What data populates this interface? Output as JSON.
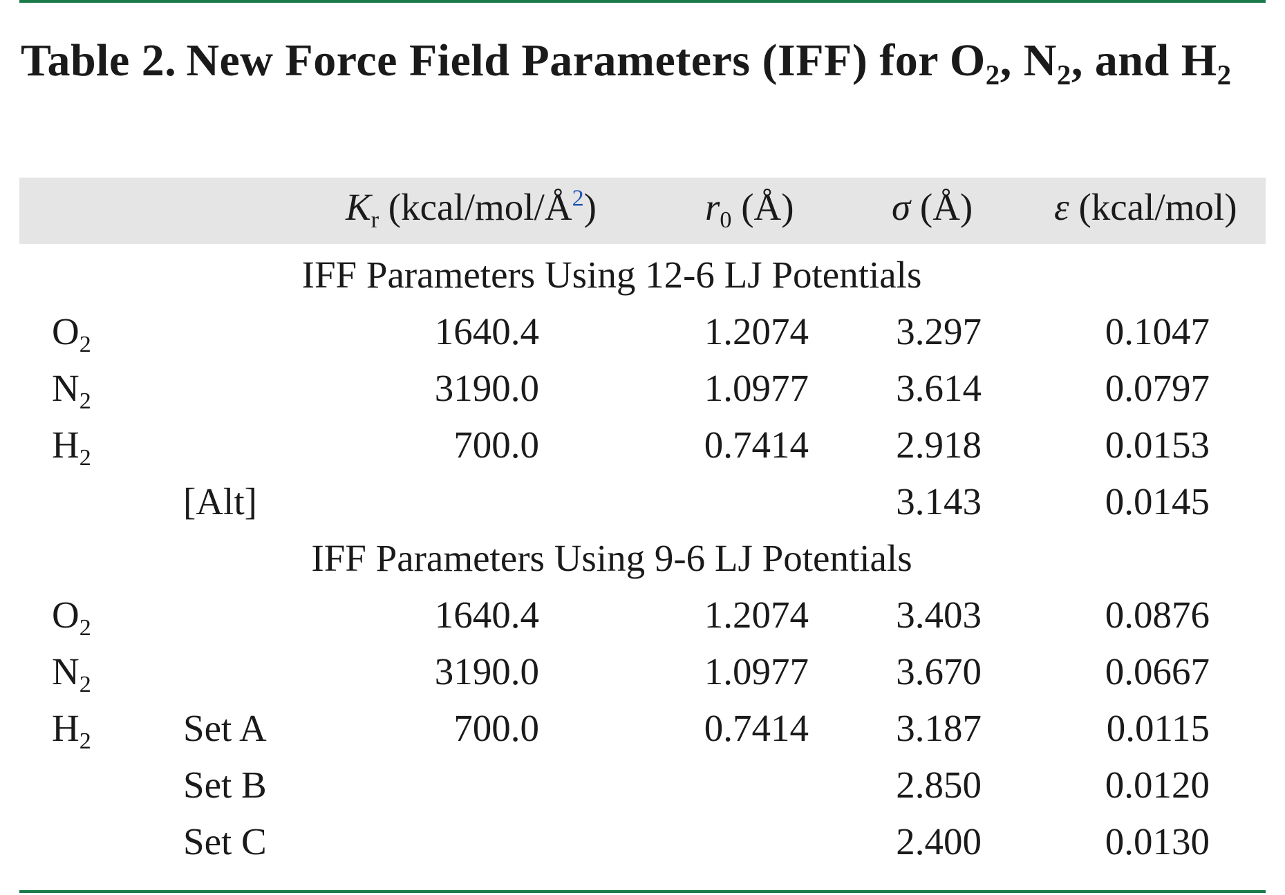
{
  "caption": {
    "label": "Table 2.",
    "title_prefix": "New Force Field Parameters (IFF) for O",
    "sub1": "2",
    "sep1": ", N",
    "sub2": "2",
    "sep2": ", and H",
    "sub3": "2"
  },
  "header": {
    "kr_symbol": "K",
    "kr_sub": "r",
    "kr_unit": " (kcal/mol/Å",
    "kr_sup": "2",
    "kr_close": ")",
    "r0_symbol": "r",
    "r0_sub": "0",
    "r0_unit": " (Å)",
    "sigma_symbol": "σ",
    "sigma_unit": " (Å)",
    "eps_symbol": "ε",
    "eps_unit": " (kcal/mol)"
  },
  "sections": [
    {
      "title": "IFF Parameters Using 12-6 LJ Potentials",
      "rows": [
        {
          "mol": "O",
          "mol_sub": "2",
          "variant": "",
          "kr": "1640.4",
          "r0": "1.2074",
          "sigma": "3.297",
          "eps": "0.1047"
        },
        {
          "mol": "N",
          "mol_sub": "2",
          "variant": "",
          "kr": "3190.0",
          "r0": "1.0977",
          "sigma": "3.614",
          "eps": "0.0797"
        },
        {
          "mol": "H",
          "mol_sub": "2",
          "variant": "",
          "kr": "700.0",
          "r0": "0.7414",
          "sigma": "2.918",
          "eps": "0.0153"
        },
        {
          "mol": "",
          "mol_sub": "",
          "variant": "[Alt]",
          "kr": "",
          "r0": "",
          "sigma": "3.143",
          "eps": "0.0145"
        }
      ]
    },
    {
      "title": "IFF Parameters Using 9-6 LJ Potentials",
      "rows": [
        {
          "mol": "O",
          "mol_sub": "2",
          "variant": "",
          "kr": "1640.4",
          "r0": "1.2074",
          "sigma": "3.403",
          "eps": "0.0876"
        },
        {
          "mol": "N",
          "mol_sub": "2",
          "variant": "",
          "kr": "3190.0",
          "r0": "1.0977",
          "sigma": "3.670",
          "eps": "0.0667"
        },
        {
          "mol": "H",
          "mol_sub": "2",
          "variant": "Set A",
          "kr": "700.0",
          "r0": "0.7414",
          "sigma": "3.187",
          "eps": "0.0115"
        },
        {
          "mol": "",
          "mol_sub": "",
          "variant": "Set B",
          "kr": "",
          "r0": "",
          "sigma": "2.850",
          "eps": "0.0120"
        },
        {
          "mol": "",
          "mol_sub": "",
          "variant": "Set C",
          "kr": "",
          "r0": "",
          "sigma": "2.400",
          "eps": "0.0130"
        }
      ]
    }
  ]
}
